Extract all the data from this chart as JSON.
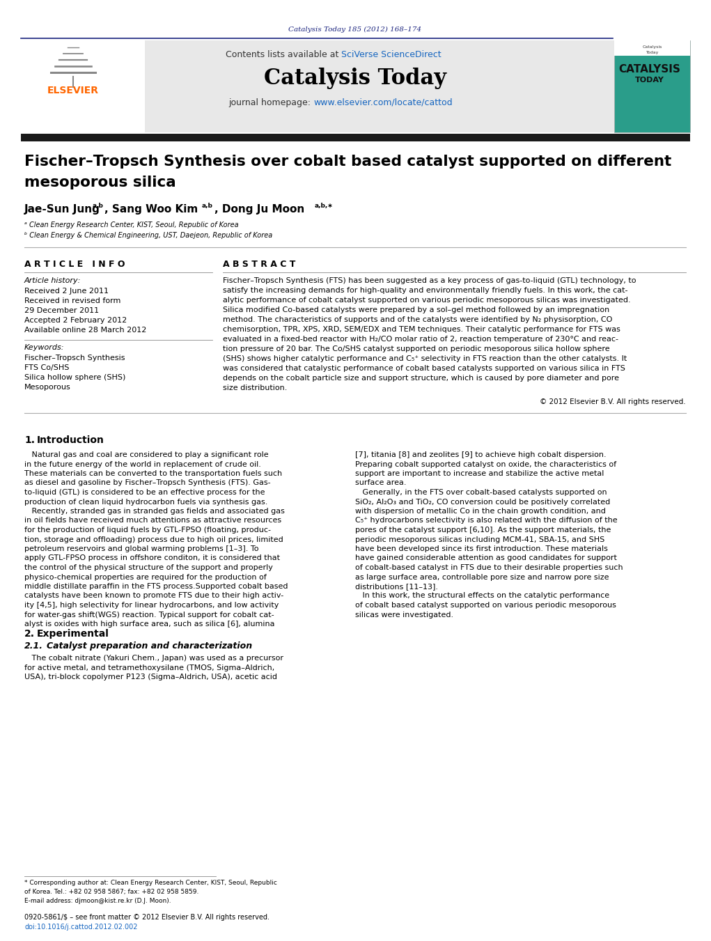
{
  "page_width": 10.21,
  "page_height": 13.51,
  "bg_color": "#ffffff",
  "journal_ref": "Catalysis Today 185 (2012) 168–174",
  "journal_ref_color": "#1a237e",
  "header_bg": "#e8e8e8",
  "header_contents": "Contents lists available at",
  "sciverse_text": "SciVerse ScienceDirect",
  "sciverse_color": "#1565c0",
  "journal_name": "Catalysis Today",
  "journal_url": "www.elsevier.com/locate/cattod",
  "journal_url_color": "#1565c0",
  "separator_color": "#1a237e",
  "dark_bar_color": "#1a1a1a",
  "article_title_line1": "Fischer–Tropsch Synthesis over cobalt based catalyst supported on different",
  "article_title_line2": "mesoporous silica",
  "article_info_header": "A R T I C L E   I N F O",
  "abstract_header": "A B S T R A C T",
  "article_history_label": "Article history:",
  "received": "Received 2 June 2011",
  "revised": "Received in revised form",
  "revised2": "29 December 2011",
  "accepted": "Accepted 2 February 2012",
  "available": "Available online 28 March 2012",
  "keywords_label": "Keywords:",
  "kw1": "Fischer–Tropsch Synthesis",
  "kw2": "FTS Co/SHS",
  "kw3": "Silica hollow sphere (SHS)",
  "kw4": "Mesoporous",
  "copyright": "© 2012 Elsevier B.V. All rights reserved.",
  "footnote_star": "* Corresponding author at: Clean Energy Research Center, KIST, Seoul, Republic",
  "footnote_star2": "of Korea. Tel.: +82 02 958 5867; fax: +82 02 958 5859.",
  "footnote_email": "E-mail address: djmoon@kist.re.kr (D.J. Moon).",
  "issn_text": "0920-5861/$ – see front matter © 2012 Elsevier B.V. All rights reserved.",
  "doi_text": "doi:10.1016/j.cattod.2012.02.002",
  "text_color": "#000000",
  "link_color": "#1565c0",
  "abstract_lines": [
    "Fischer–Tropsch Synthesis (FTS) has been suggested as a key process of gas-to-liquid (GTL) technology, to",
    "satisfy the increasing demands for high-quality and environmentally friendly fuels. In this work, the cat-",
    "alytic performance of cobalt catalyst supported on various periodic mesoporous silicas was investigated.",
    "Silica modified Co-based catalysts were prepared by a sol–gel method followed by an impregnation",
    "method. The characteristics of supports and of the catalysts were identified by N₂ physisorption, CO",
    "chemisorption, TPR, XPS, XRD, SEM/EDX and TEM techniques. Their catalytic performance for FTS was",
    "evaluated in a fixed-bed reactor with H₂/CO molar ratio of 2, reaction temperature of 230°C and reac-",
    "tion pressure of 20 bar. The Co/SHS catalyst supported on periodic mesoporous silica hollow sphere",
    "(SHS) shows higher catalytic performance and C₅⁺ selectivity in FTS reaction than the other catalysts. It",
    "was considered that catalystic performance of cobalt based catalysts supported on various silica in FTS",
    "depends on the cobalt particle size and support structure, which is caused by pore diameter and pore",
    "size distribution."
  ],
  "intro_col1_lines": [
    "   Natural gas and coal are considered to play a significant role",
    "in the future energy of the world in replacement of crude oil.",
    "These materials can be converted to the transportation fuels such",
    "as diesel and gasoline by Fischer–Tropsch Synthesis (FTS). Gas-",
    "to-liquid (GTL) is considered to be an effective process for the",
    "production of clean liquid hydrocarbon fuels via synthesis gas.",
    "   Recently, stranded gas in stranded gas fields and associated gas",
    "in oil fields have received much attentions as attractive resources",
    "for the production of liquid fuels by GTL-FPSO (floating, produc-",
    "tion, storage and offloading) process due to high oil prices, limited",
    "petroleum reservoirs and global warming problems [1–3]. To",
    "apply GTL-FPSO process in offshore conditon, it is considered that",
    "the control of the physical structure of the support and properly",
    "physico-chemical properties are required for the production of",
    "middle distillate paraffin in the FTS process.Supported cobalt based",
    "catalysts have been known to promote FTS due to their high activ-",
    "ity [4,5], high selectivity for linear hydrocarbons, and low activity",
    "for water-gas shift(WGS) reaction. Typical support for cobalt cat-",
    "alyst is oxides with high surface area, such as silica [6], alumina"
  ],
  "intro_col2_lines": [
    "[7], titania [8] and zeolites [9] to achieve high cobalt dispersion.",
    "Preparing cobalt supported catalyst on oxide, the characteristics of",
    "support are important to increase and stabilize the active metal",
    "surface area.",
    "   Generally, in the FTS over cobalt-based catalysts supported on",
    "SiO₂, Al₂O₃ and TiO₂, CO conversion could be positively correlated",
    "with dispersion of metallic Co in the chain growth condition, and",
    "C₅⁺ hydrocarbons selectivity is also related with the diffusion of the",
    "pores of the catalyst support [6,10]. As the support materials, the",
    "periodic mesoporous silicas including MCM-41, SBA-15, and SHS",
    "have been developed since its first introduction. These materials",
    "have gained considerable attention as good candidates for support",
    "of cobalt-based catalyst in FTS due to their desirable properties such",
    "as large surface area, controllable pore size and narrow pore size",
    "distributions [11–13].",
    "   In this work, the structural effects on the catalytic performance",
    "of cobalt based catalyst supported on various periodic mesoporous",
    "silicas were investigated."
  ],
  "exp_lines": [
    "   The cobalt nitrate (Yakuri Chem., Japan) was used as a precursor",
    "for active metal, and tetramethoxysilane (TMOS, Sigma–Aldrich,",
    "USA), tri-block copolymer P123 (Sigma–Aldrich, USA), acetic acid"
  ]
}
